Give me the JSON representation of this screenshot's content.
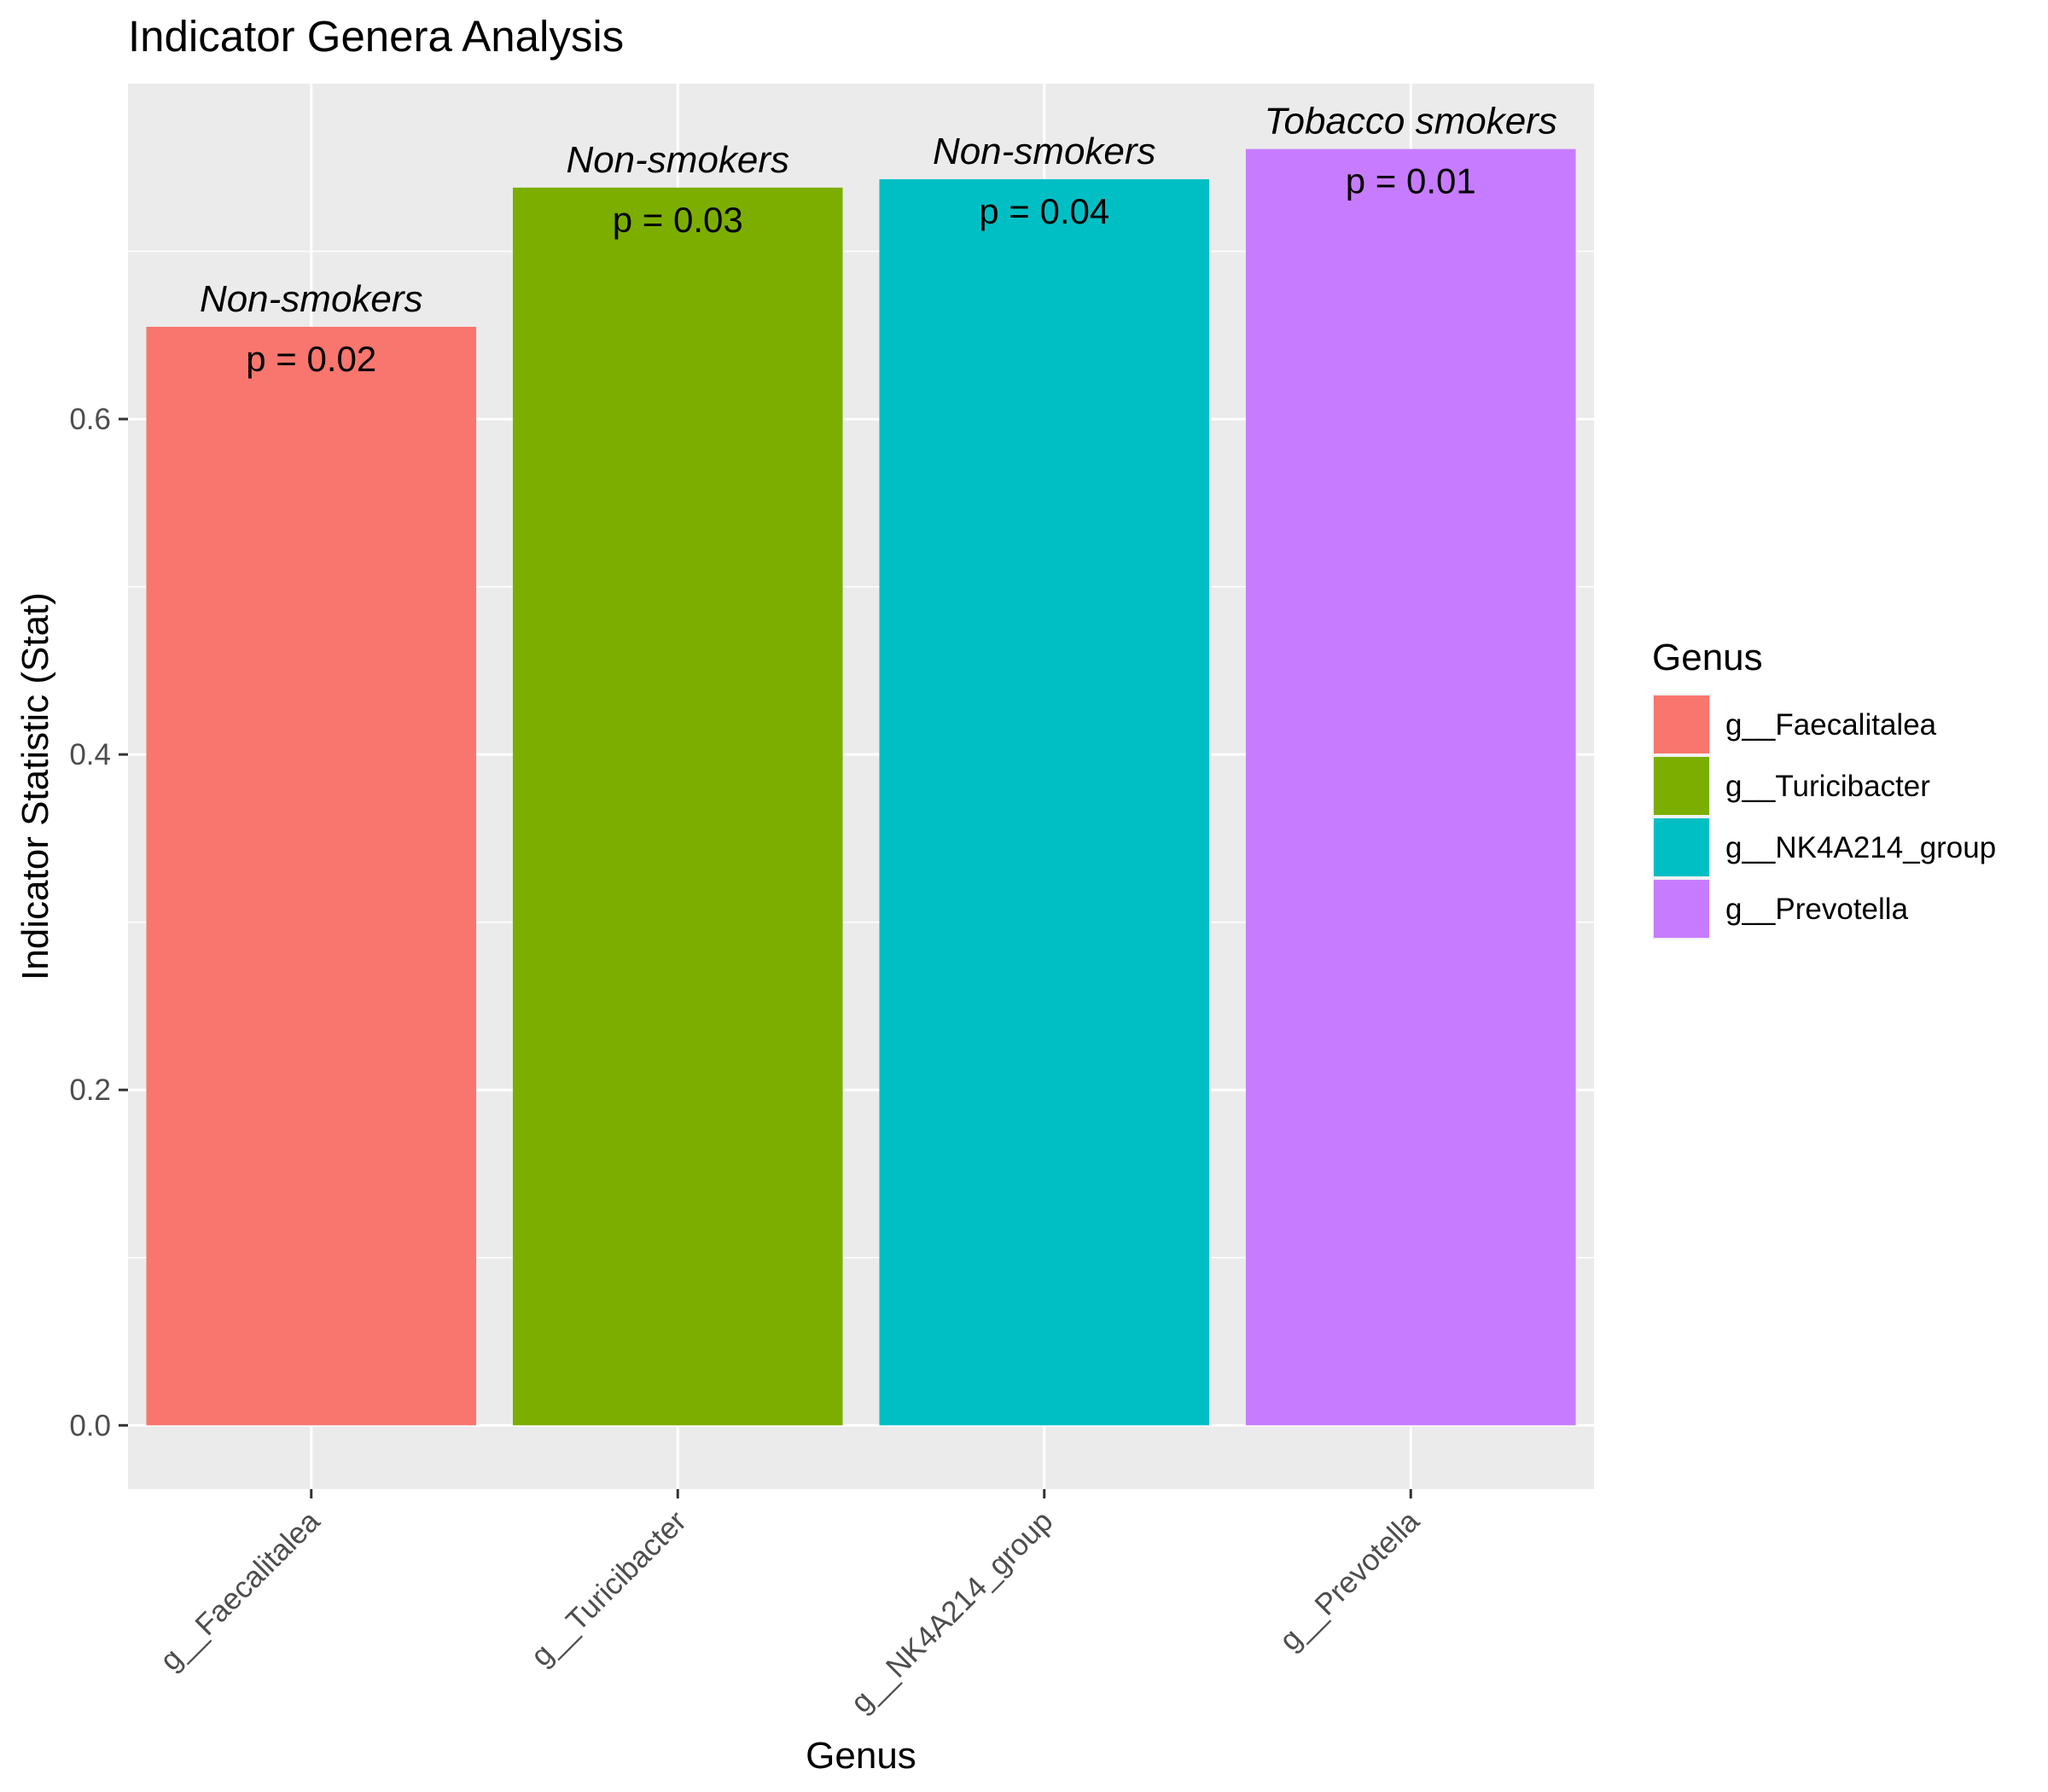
{
  "chart_data": {
    "type": "bar",
    "title": "Indicator Genera Analysis",
    "xlabel": "Genus",
    "ylabel": "Indicator Statistic (Stat)",
    "categories": [
      "g__Faecalitalea",
      "g__Turicibacter",
      "g__NK4A214_group",
      "g__Prevotella"
    ],
    "values": [
      0.655,
      0.738,
      0.743,
      0.761
    ],
    "group_labels": [
      "Non-smokers",
      "Non-smokers",
      "Non-smokers",
      "Tobacco smokers"
    ],
    "p_labels": [
      "p = 0.02",
      "p = 0.03",
      "p = 0.04",
      "p = 0.01"
    ],
    "colors": [
      "#F8766D",
      "#7CAE00",
      "#00BFC4",
      "#C77CFF"
    ],
    "ylim": [
      -0.038,
      0.8
    ],
    "yticks": [
      0.0,
      0.2,
      0.4,
      0.6
    ],
    "ytick_labels": [
      "0.0",
      "0.2",
      "0.4",
      "0.6"
    ],
    "legend_title": "Genus",
    "legend_position": "right",
    "grid": true,
    "panel_background": "#EBEBEB",
    "grid_color": "#FFFFFF"
  }
}
